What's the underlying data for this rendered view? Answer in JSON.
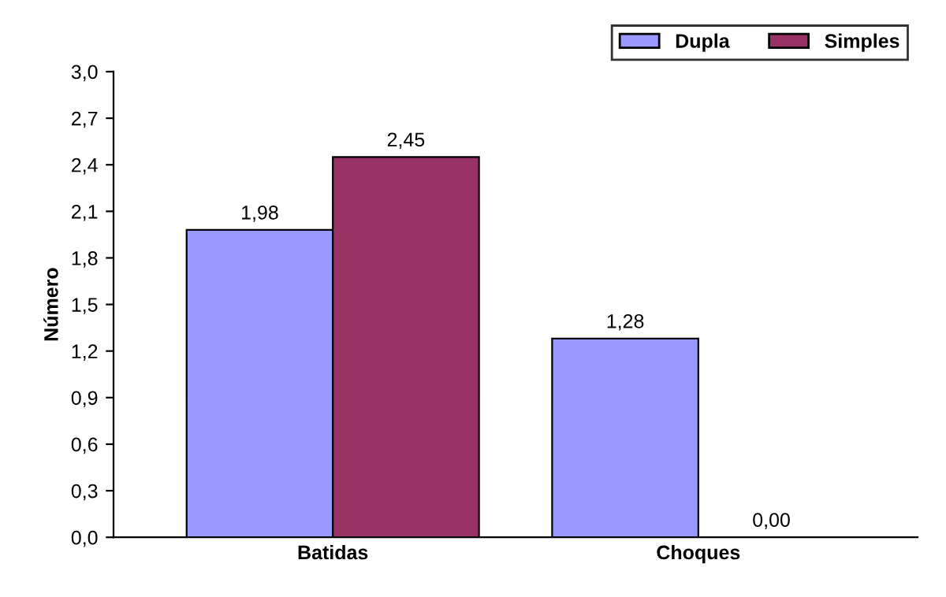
{
  "chart_data": {
    "type": "bar",
    "ylabel": "Número",
    "categories": [
      "Batidas",
      "Choques"
    ],
    "series": [
      {
        "name": "Dupla",
        "color": "#9999ff",
        "values": [
          1.98,
          1.28
        ],
        "value_labels": [
          "1,98",
          "1,28"
        ]
      },
      {
        "name": "Simples",
        "color": "#993366",
        "values": [
          2.45,
          0.0
        ],
        "value_labels": [
          "2,45",
          "0,00"
        ]
      }
    ],
    "ylim": [
      0,
      3
    ],
    "yticks": [
      {
        "value": 0,
        "label": "0,0"
      },
      {
        "value": 0.3,
        "label": "0,3"
      },
      {
        "value": 0.6,
        "label": "0,6"
      },
      {
        "value": 0.9,
        "label": "0,9"
      },
      {
        "value": 1.2,
        "label": "1,2"
      },
      {
        "value": 1.5,
        "label": "1,5"
      },
      {
        "value": 1.8,
        "label": "1,8"
      },
      {
        "value": 2.1,
        "label": "2,1"
      },
      {
        "value": 2.4,
        "label": "2,4"
      },
      {
        "value": 2.7,
        "label": "2,7"
      },
      {
        "value": 3.0,
        "label": "3,0"
      }
    ],
    "legend": "top right",
    "grid": false
  }
}
